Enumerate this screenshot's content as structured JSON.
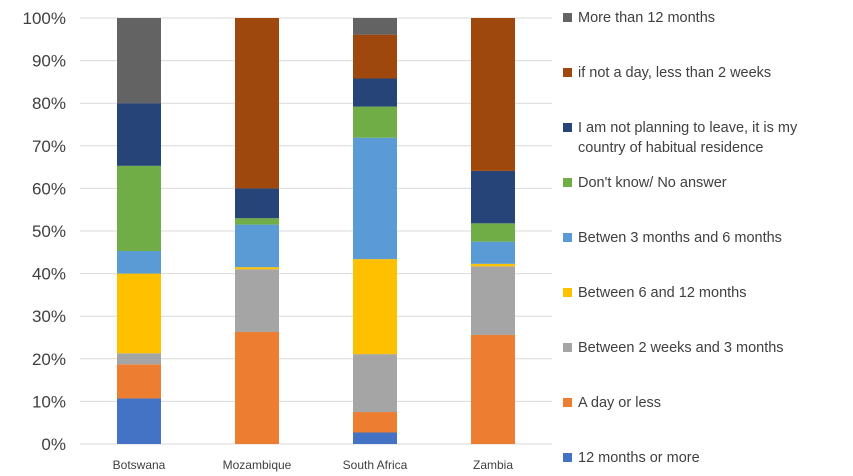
{
  "chart_data": {
    "type": "bar",
    "stacked": true,
    "categories": [
      "Botswana",
      "Mozambique",
      "South Africa",
      "Zambia"
    ],
    "ylim": [
      0,
      100
    ],
    "yticks": [
      "0%",
      "10%",
      "20%",
      "30%",
      "40%",
      "50%",
      "60%",
      "70%",
      "80%",
      "90%",
      "100%"
    ],
    "grid": true,
    "legend_position": "right",
    "series": [
      {
        "name": "12 months  or more",
        "color": "#4472C4",
        "values": [
          10.7,
          0,
          2.7,
          0
        ]
      },
      {
        "name": "A day or less",
        "color": "#ED7D31",
        "values": [
          8.0,
          26.3,
          4.8,
          25.6
        ]
      },
      {
        "name": "Between 2 weeks and 3 months",
        "color": "#A5A5A5",
        "values": [
          2.6,
          14.7,
          13.6,
          16.1
        ]
      },
      {
        "name": "Between 6 and 12 months",
        "color": "#FFC000",
        "values": [
          18.7,
          0.5,
          22.3,
          0.6
        ]
      },
      {
        "name": "Betwen 3 months and 6 months",
        "color": "#5B9BD5",
        "values": [
          5.3,
          10.0,
          28.5,
          5.2
        ]
      },
      {
        "name": "Don't know/ No answer",
        "color": "#70AD47",
        "values": [
          20.0,
          1.5,
          7.3,
          4.3
        ]
      },
      {
        "name": "I am not planning to leave, it is my country of habitual residence",
        "color": "#264478",
        "values": [
          14.7,
          7.0,
          6.6,
          12.3
        ]
      },
      {
        "name": "if not a day, less than 2 weeks",
        "color": "#9E480E",
        "values": [
          0,
          40.0,
          10.3,
          35.9
        ]
      },
      {
        "name": "More than 12 months",
        "color": "#636363",
        "values": [
          20.0,
          0,
          3.9,
          0
        ]
      }
    ]
  }
}
